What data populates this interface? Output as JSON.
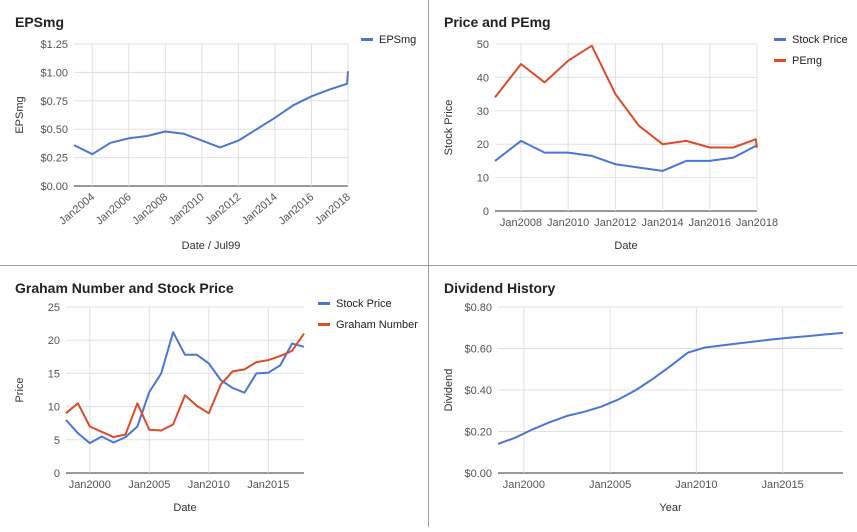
{
  "colors": {
    "blue": "#4a76d4",
    "red": "#dc4b2b",
    "grid": "#e0e0e0",
    "axis": "#333333",
    "text": "#555555",
    "border": "#9e9e9e"
  },
  "chart_data": [
    {
      "id": "eps",
      "type": "line",
      "title": "EPSmg",
      "xlabel": "Date / Jul99",
      "ylabel": "EPSmg",
      "x_ticks": [
        "Jan2004",
        "Jan2006",
        "Jan2008",
        "Jan2010",
        "Jan2012",
        "Jan2014",
        "Jan2016",
        "Jan2018"
      ],
      "x_tick_values": [
        2004,
        2006,
        2008,
        2010,
        2012,
        2014,
        2016,
        2018
      ],
      "xlim": [
        2003.0,
        2018.0
      ],
      "y_ticks": [
        "$0.00",
        "$0.25",
        "$0.50",
        "$0.75",
        "$1.00",
        "$1.25"
      ],
      "y_tick_values": [
        0,
        0.25,
        0.5,
        0.75,
        1.0,
        1.25
      ],
      "ylim": [
        0,
        1.25
      ],
      "x_labels_rotated": true,
      "legend": "right",
      "series": [
        {
          "name": "EPSmg",
          "color": "#4a76d4",
          "x": [
            2003.0,
            2004.0,
            2005.0,
            2006.0,
            2007.0,
            2008.0,
            2009.0,
            2010.0,
            2011.0,
            2012.0,
            2013.0,
            2014.0,
            2015.0,
            2016.0,
            2017.0,
            2017.95,
            2018.0
          ],
          "y": [
            0.36,
            0.28,
            0.38,
            0.42,
            0.44,
            0.48,
            0.46,
            0.4,
            0.34,
            0.4,
            0.5,
            0.6,
            0.71,
            0.79,
            0.85,
            0.9,
            1.01
          ]
        }
      ]
    },
    {
      "id": "pe",
      "type": "line",
      "title": "Price and PEmg",
      "xlabel": "Date",
      "ylabel": "Stock Price",
      "x_ticks": [
        "Jan2008",
        "Jan2010",
        "Jan2012",
        "Jan2014",
        "Jan2016",
        "Jan2018"
      ],
      "x_tick_values": [
        2008,
        2010,
        2012,
        2014,
        2016,
        2018
      ],
      "xlim": [
        2006.9,
        2018.0
      ],
      "y_ticks": [
        "0",
        "10",
        "20",
        "30",
        "40",
        "50"
      ],
      "y_tick_values": [
        0,
        10,
        20,
        30,
        40,
        50
      ],
      "ylim": [
        0,
        50
      ],
      "legend": "right",
      "series": [
        {
          "name": "Stock Price",
          "color": "#4a76d4",
          "x": [
            2006.9,
            2008.0,
            2009.0,
            2010.0,
            2011.0,
            2012.0,
            2013.0,
            2014.0,
            2015.0,
            2016.0,
            2017.0,
            2017.95,
            2018.0
          ],
          "y": [
            15,
            21,
            17.5,
            17.5,
            16.5,
            14,
            13,
            12,
            15,
            15,
            16,
            19.5,
            19
          ]
        },
        {
          "name": "PEmg",
          "color": "#dc4b2b",
          "x": [
            2006.9,
            2008.0,
            2009.0,
            2010.0,
            2011.0,
            2012.0,
            2013.0,
            2014.0,
            2015.0,
            2016.0,
            2017.0,
            2017.95,
            2018.0
          ],
          "y": [
            34,
            44,
            38.5,
            45,
            49.5,
            35,
            25.5,
            20,
            21,
            19,
            19,
            21.5,
            19
          ]
        }
      ]
    },
    {
      "id": "graham",
      "type": "line",
      "title": "Graham Number and Stock Price",
      "xlabel": "Date",
      "ylabel": "Price",
      "x_ticks": [
        "Jan2000",
        "Jan2005",
        "Jan2010",
        "Jan2015"
      ],
      "x_tick_values": [
        2000,
        2005,
        2010,
        2015
      ],
      "xlim": [
        1998.0,
        2018.0
      ],
      "y_ticks": [
        "0",
        "5",
        "10",
        "15",
        "20",
        "25"
      ],
      "y_tick_values": [
        0,
        5,
        10,
        15,
        20,
        25
      ],
      "ylim": [
        0,
        25
      ],
      "legend": "right",
      "series": [
        {
          "name": "Stock Price",
          "color": "#4a76d4",
          "x": [
            1998.0,
            1999.0,
            2000.0,
            2001.0,
            2002.0,
            2003.0,
            2004.0,
            2005.0,
            2006.0,
            2007.0,
            2008.0,
            2009.0,
            2010.0,
            2011.0,
            2012.0,
            2013.0,
            2014.0,
            2015.0,
            2016.0,
            2017.0,
            2018.0
          ],
          "y": [
            8,
            6,
            4.5,
            5.5,
            4.6,
            5.4,
            7,
            12.2,
            15,
            21.2,
            17.8,
            17.8,
            16.5,
            14,
            12.8,
            12.1,
            15,
            15.1,
            16.2,
            19.5,
            19
          ]
        },
        {
          "name": "Graham Number",
          "color": "#dc4b2b",
          "x": [
            1998.0,
            1999.0,
            2000.0,
            2001.0,
            2002.0,
            2003.0,
            2004.0,
            2005.0,
            2006.0,
            2007.0,
            2008.0,
            2009.0,
            2010.0,
            2011.0,
            2012.0,
            2013.0,
            2014.0,
            2015.0,
            2016.0,
            2017.0,
            2018.0
          ],
          "y": [
            9,
            10.5,
            7,
            6.2,
            5.4,
            5.8,
            10.5,
            6.5,
            6.4,
            7.3,
            11.7,
            10.1,
            9,
            13.3,
            15.3,
            15.6,
            16.7,
            17,
            17.6,
            18.4,
            21
          ]
        }
      ]
    },
    {
      "id": "dividend",
      "type": "line",
      "title": "Dividend History",
      "xlabel": "Year",
      "ylabel": "Dividend",
      "x_ticks": [
        "Jan2000",
        "Jan2005",
        "Jan2010",
        "Jan2015"
      ],
      "x_tick_values": [
        2000,
        2005,
        2010,
        2015
      ],
      "xlim": [
        1998.5,
        2018.5
      ],
      "y_ticks": [
        "$0.00",
        "$0.20",
        "$0.40",
        "$0.60",
        "$0.80"
      ],
      "y_tick_values": [
        0,
        0.2,
        0.4,
        0.6,
        0.8
      ],
      "ylim": [
        0,
        0.8
      ],
      "legend": "none",
      "series": [
        {
          "name": "Dividend",
          "color": "#4a76d4",
          "x": [
            1998.5,
            1999.5,
            2000.5,
            2001.5,
            2002.5,
            2003.5,
            2004.5,
            2005.5,
            2006.5,
            2007.5,
            2008.5,
            2009.5,
            2010.5,
            2011.5,
            2012.5,
            2013.5,
            2014.5,
            2015.5,
            2016.5,
            2017.5,
            2018.5
          ],
          "y": [
            0.14,
            0.17,
            0.21,
            0.245,
            0.275,
            0.295,
            0.32,
            0.355,
            0.4,
            0.455,
            0.515,
            0.58,
            0.605,
            0.615,
            0.625,
            0.635,
            0.645,
            0.653,
            0.66,
            0.668,
            0.675
          ]
        }
      ]
    }
  ]
}
